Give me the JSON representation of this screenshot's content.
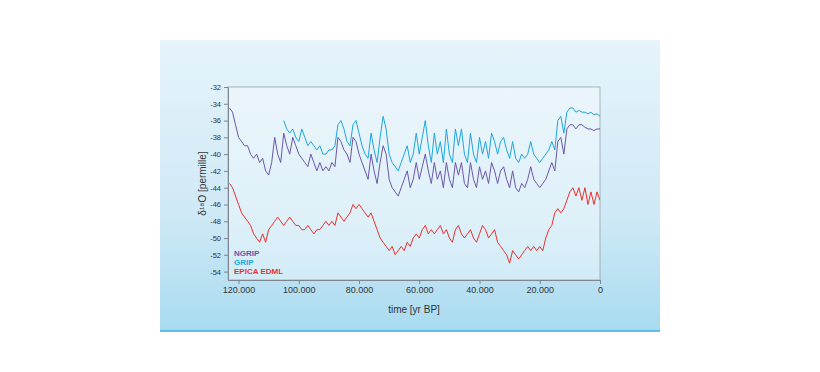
{
  "chart_data": {
    "type": "line",
    "x_label": "time [yr BP]",
    "y_label": "δ¹⁸O [permille]",
    "x": [
      123000,
      122000,
      121000,
      120000,
      119000,
      118000,
      117000,
      116000,
      115000,
      114000,
      113000,
      112000,
      111000,
      110000,
      109000,
      108000,
      107000,
      106000,
      105000,
      104000,
      103000,
      102000,
      101000,
      100000,
      99000,
      98000,
      97000,
      96000,
      95000,
      94000,
      93000,
      92000,
      91000,
      90000,
      89000,
      88000,
      87000,
      86000,
      85000,
      84000,
      83000,
      82000,
      81000,
      80000,
      79000,
      78000,
      77000,
      76000,
      75000,
      74000,
      73000,
      72000,
      71000,
      70000,
      69000,
      68000,
      67000,
      66000,
      65000,
      64000,
      63000,
      62000,
      61000,
      60000,
      59000,
      58000,
      57000,
      56000,
      55000,
      54000,
      53000,
      52000,
      51000,
      50000,
      49000,
      48000,
      47000,
      46000,
      45000,
      44000,
      43000,
      42000,
      41000,
      40000,
      39000,
      38000,
      37000,
      36000,
      35000,
      34000,
      33000,
      32000,
      31000,
      30000,
      29000,
      28000,
      27000,
      26000,
      25000,
      24000,
      23000,
      22000,
      21000,
      20000,
      19000,
      18000,
      17000,
      16000,
      15000,
      14000,
      13000,
      12000,
      11000,
      10000,
      9000,
      8000,
      7000,
      6000,
      5000,
      4000,
      3000,
      2000,
      1000,
      0
    ],
    "series": [
      {
        "name": "NGRIP",
        "color": "#6b57a9",
        "values": [
          -34.5,
          -35,
          -36.5,
          -38,
          -38.5,
          -39,
          -39,
          -40,
          -40.5,
          -40,
          -41,
          -40.5,
          -42,
          -42.5,
          -41,
          -38,
          -40,
          -41,
          -37.5,
          -39,
          -40,
          -38,
          -39,
          -40,
          -40.5,
          -41,
          -41.5,
          -40,
          -41,
          -42,
          -41,
          -42,
          -41.5,
          -42,
          -41,
          -41.5,
          -38,
          -38.5,
          -39.5,
          -40,
          -41,
          -38,
          -38.5,
          -40,
          -41,
          -42,
          -43,
          -40,
          -42,
          -43.5,
          -41,
          -39,
          -40,
          -43,
          -44,
          -44.5,
          -45,
          -44,
          -43,
          -42,
          -44,
          -43,
          -41,
          -43,
          -41.5,
          -40,
          -42,
          -43.5,
          -41,
          -43,
          -42,
          -44,
          -41,
          -43,
          -44,
          -41,
          -42.5,
          -41,
          -43.5,
          -44,
          -41,
          -43,
          -44,
          -41.5,
          -43,
          -42,
          -43.5,
          -41,
          -42,
          -43.5,
          -42,
          -41.5,
          -43,
          -44,
          -42,
          -44,
          -44.5,
          -43.5,
          -44,
          -43,
          -41.5,
          -43,
          -43.5,
          -44,
          -43.5,
          -43,
          -42,
          -41,
          -42,
          -38.5,
          -38,
          -40,
          -37,
          -36.5,
          -36.5,
          -37,
          -36.5,
          -36.5,
          -36.8,
          -37,
          -37,
          -37.2,
          -37,
          -37
        ]
      },
      {
        "name": "GRIP",
        "color": "#1ea6dc",
        "values": [
          null,
          null,
          null,
          null,
          null,
          null,
          null,
          null,
          null,
          null,
          null,
          null,
          null,
          null,
          null,
          null,
          null,
          null,
          -36,
          -37,
          -37.5,
          -37,
          -38,
          -38.5,
          -37,
          -38,
          -39,
          -38.5,
          -39,
          -39.5,
          -39,
          -40,
          -40,
          -39.5,
          -39.5,
          -39,
          -36.5,
          -36,
          -37,
          -38.5,
          -39,
          -36.5,
          -36,
          -37.5,
          -39,
          -40,
          -40.5,
          -37.5,
          -39.5,
          -41,
          -38,
          -35.5,
          -37,
          -40,
          -41,
          -41.5,
          -42,
          -41,
          -40,
          -39,
          -41,
          -40,
          -37.5,
          -40,
          -38,
          -36,
          -39,
          -41,
          -37.5,
          -40,
          -38.5,
          -41,
          -37,
          -40,
          -41,
          -37,
          -39,
          -37,
          -40,
          -41,
          -37.5,
          -40,
          -41,
          -38,
          -40,
          -38.5,
          -40.5,
          -37.5,
          -38.5,
          -40,
          -38.5,
          -38,
          -39.5,
          -40.5,
          -38.5,
          -40.5,
          -41,
          -40,
          -40.5,
          -40,
          -38.5,
          -40,
          -40.5,
          -41,
          -40.5,
          -40,
          -39.5,
          -38.5,
          -39.5,
          -36,
          -35.5,
          -37.5,
          -35,
          -34.5,
          -34.5,
          -35,
          -34.8,
          -35,
          -35,
          -35.2,
          -35,
          -35.3,
          -35.2,
          -35.5
        ]
      },
      {
        "name": "EPICA EDML",
        "color": "#e8312f",
        "values": [
          -43.5,
          -44,
          -45,
          -46,
          -47,
          -47.5,
          -48,
          -48.5,
          -49.5,
          -50,
          -50.5,
          -49.5,
          -50.5,
          -49,
          -48.5,
          -48,
          -47.5,
          -48,
          -48.5,
          -48,
          -47.5,
          -48,
          -48.5,
          -48.5,
          -49,
          -49,
          -48.5,
          -49,
          -49.5,
          -49,
          -49,
          -48.5,
          -48,
          -48.5,
          -48,
          -48.5,
          -47,
          -47.5,
          -48,
          -47.5,
          -47,
          -46,
          -46.5,
          -46,
          -46.5,
          -47,
          -47.5,
          -47,
          -48,
          -49,
          -50,
          -50.5,
          -51,
          -51.5,
          -51,
          -52,
          -51.5,
          -51,
          -51.5,
          -50.5,
          -51,
          -50,
          -49.5,
          -50,
          -49,
          -48.5,
          -49.5,
          -49,
          -49.5,
          -49,
          -48.5,
          -49.5,
          -49,
          -50,
          -50.5,
          -49,
          -48.5,
          -49.5,
          -50,
          -49.5,
          -49,
          -50,
          -50.5,
          -49.5,
          -48.5,
          -49,
          -50,
          -49.5,
          -49,
          -50.5,
          -51,
          -51.5,
          -52,
          -53,
          -51.5,
          -52,
          -52.5,
          -52,
          -51.5,
          -51,
          -51.5,
          -51,
          -51.5,
          -51,
          -51.5,
          -50,
          -49,
          -48.5,
          -47,
          -46.5,
          -47,
          -46.5,
          -45.5,
          -44.5,
          -44,
          -45,
          -44,
          -45.5,
          -44,
          -46,
          -44.5,
          -46,
          -44.5,
          -45.5
        ]
      }
    ],
    "xlim": [
      123500,
      0
    ],
    "xticks": [
      {
        "value": 120000,
        "label": "120.000"
      },
      {
        "value": 100000,
        "label": "100.000"
      },
      {
        "value": 80000,
        "label": "80.000"
      },
      {
        "value": 60000,
        "label": "60.000"
      },
      {
        "value": 40000,
        "label": "40.000"
      },
      {
        "value": 20000,
        "label": "20.000"
      },
      0
    ],
    "ylim": [
      -55,
      -32
    ],
    "yticks": [
      -32,
      -34,
      -36,
      -38,
      -40,
      -42,
      -44,
      -46,
      -48,
      -50,
      -52,
      -54
    ],
    "grid": false,
    "legend": "lower left"
  }
}
